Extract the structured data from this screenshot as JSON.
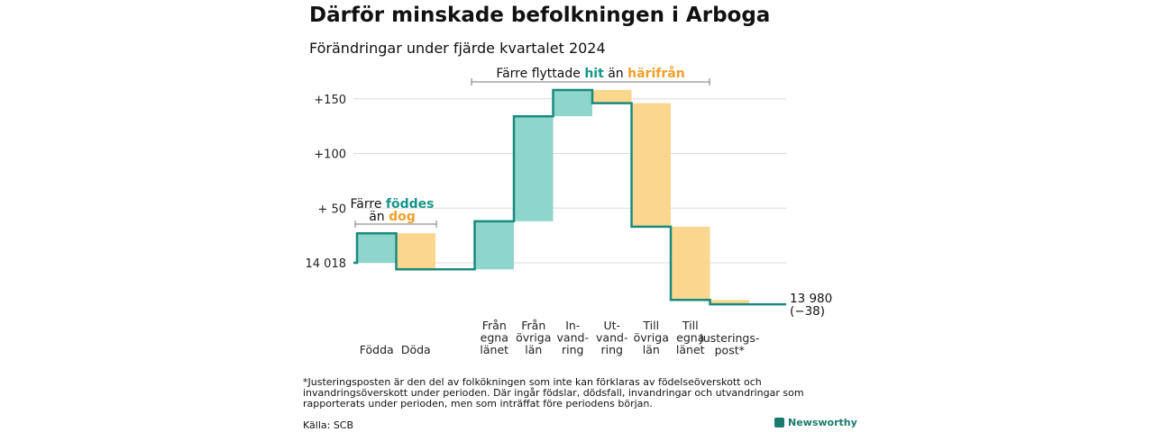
{
  "title": "Därför minskade befolkningen i Arboga",
  "subtitle": "Förändringar under fjärde kvartalet 2024",
  "colors": {
    "teal": "#8ed6cb",
    "orange": "#fbd68e",
    "line": "#1a8a7e",
    "tealText": "#17948a",
    "orangeText": "#f0a02a",
    "grid": "#dcdcdc"
  },
  "annotations": {
    "births": {
      "prefix": "Färre ",
      "hi1": "föddes",
      "line2a": "än ",
      "hi2": "dog"
    },
    "migration": {
      "prefix": "Färre flyttade ",
      "hi1": "hit",
      "mid": " än ",
      "hi2": "härifrån"
    }
  },
  "chart_data": {
    "type": "waterfall",
    "start": {
      "label": "14 018",
      "value": 14018
    },
    "end": {
      "value": 13980,
      "label": "13 980",
      "change_label": "(−38)"
    },
    "ylim": [
      -50,
      165
    ],
    "y_ticks": [
      {
        "value": 0,
        "label": "14 018"
      },
      {
        "value": 50,
        "label": "+ 50"
      },
      {
        "value": 100,
        "label": "+100"
      },
      {
        "value": 150,
        "label": "+150"
      }
    ],
    "steps": [
      {
        "label": [
          "Födda"
        ],
        "change": 27,
        "direction": "in"
      },
      {
        "label": [
          "Döda"
        ],
        "change": -33,
        "direction": "out"
      },
      {
        "label": [
          "Från",
          "egna",
          "länet"
        ],
        "change": 44,
        "direction": "in"
      },
      {
        "label": [
          "Från",
          "övriga",
          "län"
        ],
        "change": 96,
        "direction": "in"
      },
      {
        "label": [
          "In-",
          "vand-",
          "ring"
        ],
        "change": 24,
        "direction": "in"
      },
      {
        "label": [
          "Ut-",
          "vand-",
          "ring"
        ],
        "change": -12,
        "direction": "out"
      },
      {
        "label": [
          "Till",
          "övriga",
          "län"
        ],
        "change": -113,
        "direction": "out"
      },
      {
        "label": [
          "Till",
          "egna",
          "länet"
        ],
        "change": -67,
        "direction": "out"
      },
      {
        "label": [
          "Justerings-",
          "post*"
        ],
        "change": -4,
        "direction": "out"
      }
    ]
  },
  "footnote": "*Justeringsposten är den del av folkökningen som inte kan förklaras av födelseöverskott och invandringsöverskott under perioden. Där ingår födslar, dödsfall, invandringar och utvandringar som rapporterats under perioden, men som inträffat före periodens början.",
  "source": "Källa: SCB",
  "brand": "Newsworthy"
}
